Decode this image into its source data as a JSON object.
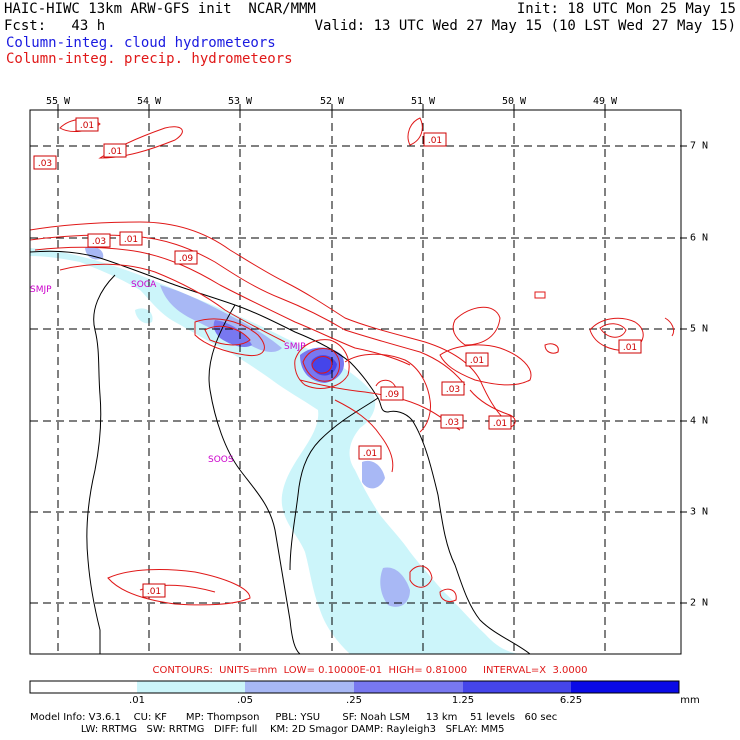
{
  "header": {
    "line1_left": "HAIC-HIWC 13km ARW-GFS init  NCAR/MMM",
    "line1_right": "Init: 18 UTC Mon 25 May 15",
    "line2_left": "Fcst:   43 h",
    "line2_right": "Valid: 13 UTC Wed 27 May 15 (10 LST Wed 27 May 15)",
    "legend_cloud": "Column-integ. cloud hydrometeors",
    "legend_precip": "Column-integ. precip. hydrometeors"
  },
  "colors": {
    "cloud": "#1a1ae0",
    "precip": "#e01818",
    "shade_1": "#ccf5fa",
    "shade_2": "#a8b8f5",
    "shade_3": "#7878f0",
    "shade_4": "#4545ea",
    "shade_5": "#0a0ae6"
  },
  "map": {
    "longitude_labels": [
      "55 W",
      "54 W",
      "53 W",
      "52 W",
      "51 W",
      "50 W",
      "49 W"
    ],
    "latitude_labels": [
      "7 N",
      "6 N",
      "5 N",
      "4 N",
      "3 N",
      "2 N"
    ],
    "stations": [
      "SMJP",
      "SOCA",
      "SMJP",
      "SOOS"
    ],
    "contour_labels": [
      ".01",
      ".03",
      ".01",
      ".03",
      ".01",
      ".09",
      ".01",
      ".01",
      ".01",
      ".03",
      ".09",
      ".03",
      ".01",
      ".01",
      ".01"
    ]
  },
  "contour_info": "CONTOURS:  UNITS=mm  LOW= 0.10000E-01  HIGH= 0.81000     INTERVAL=X  3.0000",
  "colorbar": {
    "labels": [
      ".01",
      ".05",
      ".25",
      "1.25",
      "6.25"
    ],
    "units": "mm"
  },
  "footer": {
    "line1": "Model Info: V3.6.1    CU: KF      MP: Thompson     PBL: YSU       SF: Noah LSM     13 km    51 levels   60 sec",
    "line2": "                LW: RRTMG   SW: RRTMG   DIFF: full    KM: 2D Smagor DAMP: Rayleigh3   SFLAY: MM5"
  }
}
